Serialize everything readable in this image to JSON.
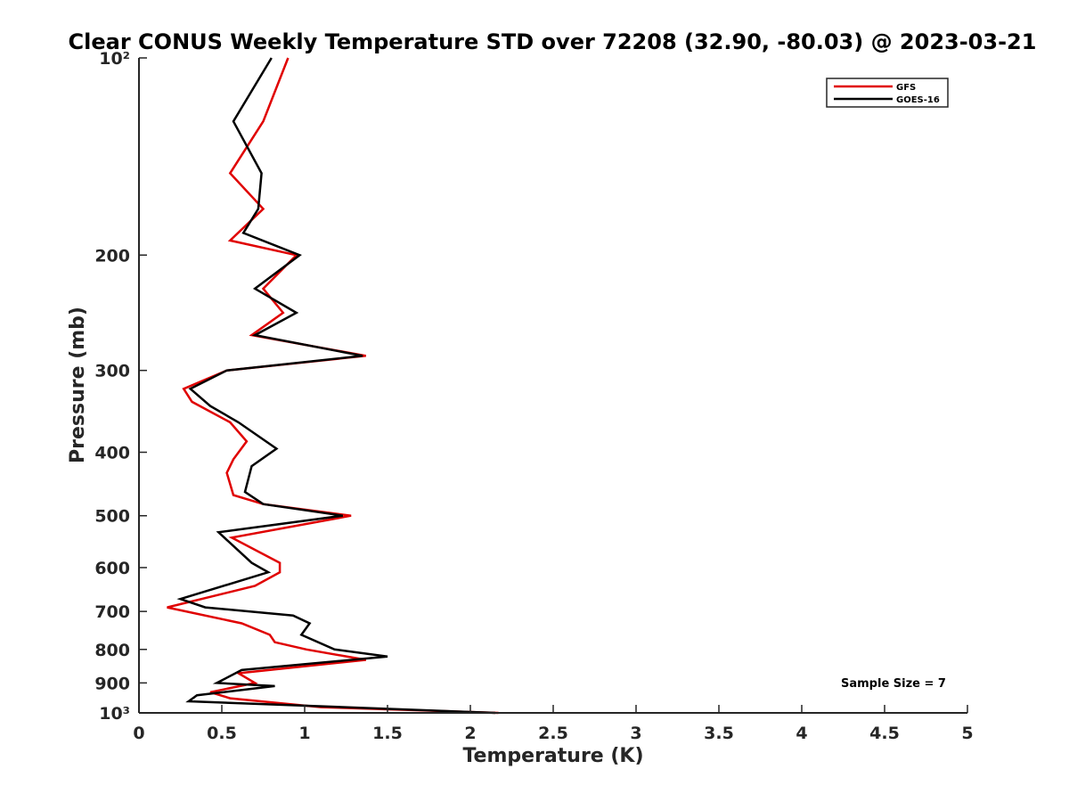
{
  "chart_data": {
    "type": "line",
    "title": "Clear CONUS Weekly Temperature STD over 72208 (32.90, -80.03) @ 2023-03-21",
    "xlabel": "Temperature (K)",
    "ylabel": "Pressure (mb)",
    "xlim": [
      0,
      5
    ],
    "ylim": [
      1000,
      100
    ],
    "y_scale": "log",
    "y_reversed": true,
    "x_ticks": [
      0,
      0.5,
      1,
      1.5,
      2,
      2.5,
      3,
      3.5,
      4,
      4.5,
      5
    ],
    "x_tick_labels": [
      "0",
      "0.5",
      "1",
      "1.5",
      "2",
      "2.5",
      "3",
      "3.5",
      "4",
      "4.5",
      "5"
    ],
    "y_ticks": [
      100,
      200,
      300,
      400,
      500,
      600,
      700,
      800,
      900,
      1000
    ],
    "y_tick_labels": [
      "10²",
      "200",
      "300",
      "400",
      "500",
      "600",
      "700",
      "800",
      "900",
      "10³"
    ],
    "grid": false,
    "legend_position": "top-right",
    "annotation": "Sample Size = 7",
    "colors": {
      "GFS": "#e00000",
      "GOES-16": "#000000",
      "axis": "#262626"
    },
    "series": [
      {
        "name": "GFS",
        "points": [
          [
            0.9,
            100
          ],
          [
            0.75,
            125
          ],
          [
            0.55,
            150
          ],
          [
            0.75,
            170
          ],
          [
            0.55,
            190
          ],
          [
            0.95,
            200
          ],
          [
            0.75,
            225
          ],
          [
            0.87,
            245
          ],
          [
            0.68,
            265
          ],
          [
            1.37,
            285
          ],
          [
            0.53,
            300
          ],
          [
            0.27,
            320
          ],
          [
            0.32,
            335
          ],
          [
            0.55,
            360
          ],
          [
            0.65,
            385
          ],
          [
            0.57,
            410
          ],
          [
            0.53,
            430
          ],
          [
            0.57,
            465
          ],
          [
            0.75,
            480
          ],
          [
            1.28,
            500
          ],
          [
            0.56,
            540
          ],
          [
            0.85,
            590
          ],
          [
            0.85,
            610
          ],
          [
            0.7,
            640
          ],
          [
            0.17,
            690
          ],
          [
            0.62,
            730
          ],
          [
            0.79,
            760
          ],
          [
            0.82,
            780
          ],
          [
            1.01,
            800
          ],
          [
            1.37,
            830
          ],
          [
            0.6,
            870
          ],
          [
            0.7,
            900
          ],
          [
            0.43,
            930
          ],
          [
            0.55,
            950
          ],
          [
            1.1,
            980
          ],
          [
            2.17,
            1000
          ]
        ]
      },
      {
        "name": "GOES-16",
        "points": [
          [
            0.8,
            100
          ],
          [
            0.57,
            125
          ],
          [
            0.74,
            150
          ],
          [
            0.72,
            170
          ],
          [
            0.63,
            185
          ],
          [
            0.97,
            200
          ],
          [
            0.7,
            225
          ],
          [
            0.95,
            245
          ],
          [
            0.7,
            265
          ],
          [
            1.35,
            285
          ],
          [
            0.53,
            300
          ],
          [
            0.31,
            320
          ],
          [
            0.43,
            340
          ],
          [
            0.6,
            360
          ],
          [
            0.83,
            395
          ],
          [
            0.68,
            420
          ],
          [
            0.64,
            460
          ],
          [
            0.75,
            480
          ],
          [
            1.23,
            500
          ],
          [
            0.48,
            530
          ],
          [
            0.68,
            590
          ],
          [
            0.78,
            610
          ],
          [
            0.25,
            670
          ],
          [
            0.4,
            690
          ],
          [
            0.93,
            710
          ],
          [
            1.03,
            730
          ],
          [
            0.98,
            760
          ],
          [
            1.18,
            800
          ],
          [
            1.5,
            820
          ],
          [
            0.62,
            860
          ],
          [
            0.47,
            900
          ],
          [
            0.82,
            910
          ],
          [
            0.35,
            940
          ],
          [
            0.3,
            960
          ],
          [
            2.15,
            1000
          ]
        ]
      }
    ]
  }
}
